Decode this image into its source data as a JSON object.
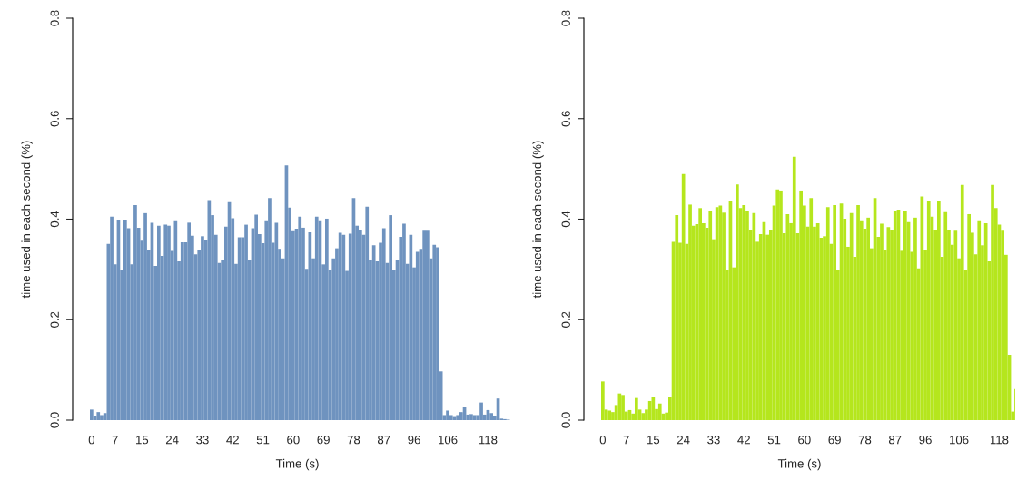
{
  "chart_data": [
    {
      "type": "bar",
      "xlabel": "Time (s)",
      "ylabel": "time used in each second (%)",
      "color": "#6f93bf",
      "ylim": [
        0,
        0.8
      ],
      "yticks": [
        {
          "value": 0,
          "label": "0.0"
        },
        0.2,
        0.4,
        0.6,
        0.8
      ],
      "categories": [
        "0",
        null,
        null,
        null,
        null,
        null,
        null,
        "7",
        null,
        null,
        null,
        null,
        null,
        null,
        null,
        "15",
        null,
        null,
        null,
        null,
        null,
        null,
        null,
        null,
        "24",
        null,
        null,
        null,
        null,
        null,
        null,
        null,
        null,
        "33",
        null,
        null,
        null,
        null,
        null,
        null,
        null,
        null,
        "42",
        null,
        null,
        null,
        null,
        null,
        null,
        null,
        null,
        "51",
        null,
        null,
        null,
        null,
        null,
        null,
        null,
        null,
        "60",
        null,
        null,
        null,
        null,
        null,
        null,
        null,
        null,
        "69",
        null,
        null,
        null,
        null,
        null,
        null,
        null,
        null,
        "78",
        null,
        null,
        null,
        null,
        null,
        null,
        null,
        null,
        "87",
        null,
        null,
        null,
        null,
        null,
        null,
        null,
        null,
        "96",
        null,
        null,
        null,
        null,
        null,
        null,
        null,
        null,
        null,
        "106",
        null,
        null,
        null,
        null,
        null,
        null,
        null,
        null,
        null,
        null,
        null,
        "118",
        null,
        null,
        null,
        null,
        null,
        null
      ],
      "values": [
        0.021,
        0.009,
        0.016,
        0.01,
        0.014,
        0.351,
        0.405,
        0.31,
        0.399,
        0.298,
        0.399,
        0.382,
        0.31,
        0.428,
        0.383,
        0.357,
        0.412,
        0.339,
        0.393,
        0.307,
        0.387,
        0.327,
        0.389,
        0.387,
        0.337,
        0.396,
        0.316,
        0.354,
        0.354,
        0.393,
        0.367,
        0.33,
        0.339,
        0.366,
        0.359,
        0.438,
        0.408,
        0.369,
        0.313,
        0.319,
        0.385,
        0.434,
        0.402,
        0.311,
        0.364,
        0.364,
        0.389,
        0.318,
        0.382,
        0.409,
        0.37,
        0.352,
        0.396,
        0.442,
        0.353,
        0.393,
        0.341,
        0.322,
        0.507,
        0.423,
        0.376,
        0.381,
        0.405,
        0.383,
        0.301,
        0.374,
        0.322,
        0.405,
        0.396,
        0.31,
        0.401,
        0.299,
        0.322,
        0.342,
        0.373,
        0.369,
        0.297,
        0.371,
        0.442,
        0.387,
        0.379,
        0.369,
        0.425,
        0.318,
        0.348,
        0.316,
        0.353,
        0.382,
        0.313,
        0.408,
        0.298,
        0.319,
        0.365,
        0.391,
        0.311,
        0.369,
        0.304,
        0.335,
        0.341,
        0.377,
        0.377,
        0.322,
        0.349,
        0.344,
        0.097,
        0.01,
        0.019,
        0.01,
        0.008,
        0.01,
        0.016,
        0.027,
        0.011,
        0.012,
        0.01,
        0.01,
        0.035,
        0.011,
        0.02,
        0.014,
        0.009,
        0.043,
        0.003,
        0.002,
        0.001
      ]
    },
    {
      "type": "bar",
      "xlabel": "Time (s)",
      "ylabel": "time used in each second (%)",
      "color": "#b5e61d",
      "ylim": [
        0,
        0.8
      ],
      "yticks": [
        {
          "value": 0,
          "label": "0.0"
        },
        0.2,
        0.4,
        0.6,
        0.8
      ],
      "categories": [
        "0",
        null,
        null,
        null,
        null,
        null,
        null,
        "7",
        null,
        null,
        null,
        null,
        null,
        null,
        null,
        "15",
        null,
        null,
        null,
        null,
        null,
        null,
        null,
        null,
        "24",
        null,
        null,
        null,
        null,
        null,
        null,
        null,
        null,
        "33",
        null,
        null,
        null,
        null,
        null,
        null,
        null,
        null,
        "42",
        null,
        null,
        null,
        null,
        null,
        null,
        null,
        null,
        "51",
        null,
        null,
        null,
        null,
        null,
        null,
        null,
        null,
        "60",
        null,
        null,
        null,
        null,
        null,
        null,
        null,
        null,
        "69",
        null,
        null,
        null,
        null,
        null,
        null,
        null,
        null,
        "78",
        null,
        null,
        null,
        null,
        null,
        null,
        null,
        null,
        "87",
        null,
        null,
        null,
        null,
        null,
        null,
        null,
        null,
        "96",
        null,
        null,
        null,
        null,
        null,
        null,
        null,
        null,
        null,
        "106",
        null,
        null,
        null,
        null,
        null,
        null,
        null,
        null,
        null,
        null,
        null,
        "118",
        null,
        null,
        null,
        null,
        null
      ],
      "values": [
        0.077,
        0.021,
        0.019,
        0.016,
        0.03,
        0.053,
        0.05,
        0.017,
        0.02,
        0.013,
        0.044,
        0.021,
        0.014,
        0.021,
        0.038,
        0.047,
        0.022,
        0.033,
        0.013,
        0.015,
        0.047,
        0.355,
        0.408,
        0.353,
        0.49,
        0.351,
        0.429,
        0.387,
        0.39,
        0.422,
        0.392,
        0.383,
        0.417,
        0.36,
        0.424,
        0.427,
        0.413,
        0.3,
        0.435,
        0.304,
        0.469,
        0.422,
        0.428,
        0.417,
        0.378,
        0.412,
        0.355,
        0.37,
        0.394,
        0.369,
        0.378,
        0.427,
        0.459,
        0.457,
        0.372,
        0.41,
        0.392,
        0.524,
        0.372,
        0.457,
        0.427,
        0.385,
        0.442,
        0.385,
        0.392,
        0.363,
        0.366,
        0.424,
        0.351,
        0.428,
        0.3,
        0.431,
        0.401,
        0.345,
        0.412,
        0.325,
        0.428,
        0.396,
        0.381,
        0.403,
        0.342,
        0.442,
        0.365,
        0.391,
        0.339,
        0.384,
        0.378,
        0.417,
        0.419,
        0.337,
        0.417,
        0.394,
        0.335,
        0.403,
        0.302,
        0.445,
        0.339,
        0.435,
        0.405,
        0.378,
        0.435,
        0.325,
        0.414,
        0.378,
        0.349,
        0.377,
        0.322,
        0.468,
        0.3,
        0.41,
        0.373,
        0.33,
        0.396,
        0.348,
        0.392,
        0.316,
        0.468,
        0.422,
        0.389,
        0.377,
        0.329,
        0.13,
        0.017,
        0.062
      ]
    }
  ]
}
